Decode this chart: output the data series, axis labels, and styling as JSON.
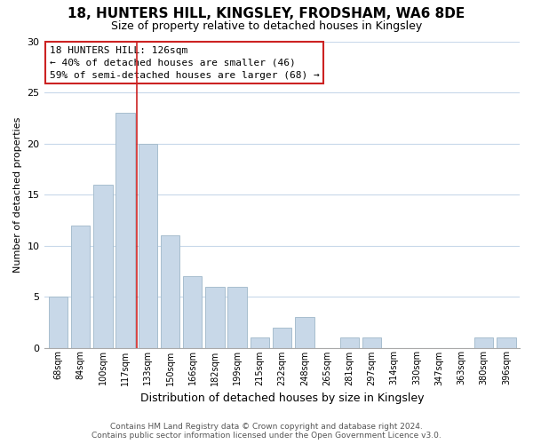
{
  "title": "18, HUNTERS HILL, KINGSLEY, FRODSHAM, WA6 8DE",
  "subtitle": "Size of property relative to detached houses in Kingsley",
  "xlabel": "Distribution of detached houses by size in Kingsley",
  "ylabel": "Number of detached properties",
  "categories": [
    "68sqm",
    "84sqm",
    "100sqm",
    "117sqm",
    "133sqm",
    "150sqm",
    "166sqm",
    "182sqm",
    "199sqm",
    "215sqm",
    "232sqm",
    "248sqm",
    "265sqm",
    "281sqm",
    "297sqm",
    "314sqm",
    "330sqm",
    "347sqm",
    "363sqm",
    "380sqm",
    "396sqm"
  ],
  "values": [
    5,
    12,
    16,
    23,
    20,
    11,
    7,
    6,
    6,
    1,
    2,
    3,
    0,
    1,
    1,
    0,
    0,
    0,
    0,
    1,
    1
  ],
  "bar_color": "#c8d8e8",
  "bar_edge_color": "#a8bece",
  "highlight_bar_index": 3,
  "red_line_color": "#cc2222",
  "annotation_title": "18 HUNTERS HILL: 126sqm",
  "annotation_line1": "← 40% of detached houses are smaller (46)",
  "annotation_line2": "59% of semi-detached houses are larger (68) →",
  "annotation_box_color": "#ffffff",
  "annotation_box_edge": "#cc2222",
  "ylim": [
    0,
    30
  ],
  "yticks": [
    0,
    5,
    10,
    15,
    20,
    25,
    30
  ],
  "footer_line1": "Contains HM Land Registry data © Crown copyright and database right 2024.",
  "footer_line2": "Contains public sector information licensed under the Open Government Licence v3.0.",
  "bg_color": "#ffffff",
  "grid_color": "#c8d8ea"
}
